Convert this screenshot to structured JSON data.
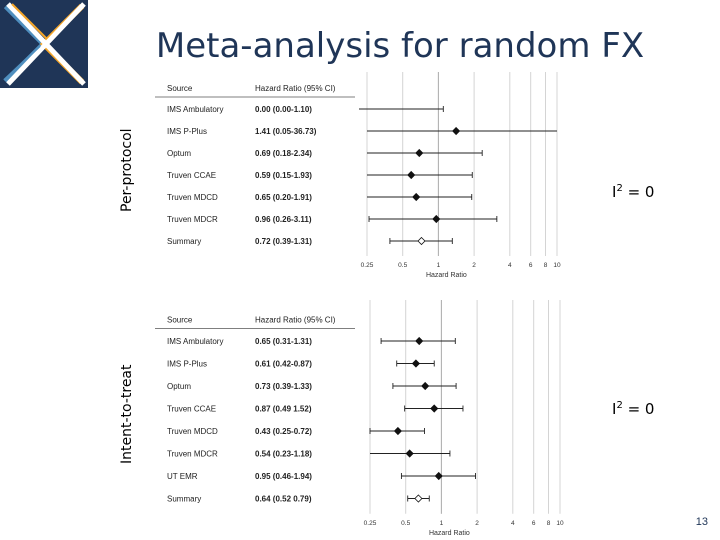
{
  "slide": {
    "title": "Meta-analysis for random FX",
    "page_number": "13",
    "colors": {
      "title": "#1f3557",
      "logo_navy": "#1f3557",
      "logo_orange": "#f4a62a",
      "logo_blue": "#4f8fbf"
    }
  },
  "chart_data": [
    {
      "type": "forest",
      "panel_label": "Per-protocol",
      "columns": [
        "Source",
        "Hazard Ratio (95% CI)"
      ],
      "rows": [
        {
          "source": "IMS Ambulatory",
          "text": "0.00 (0.00-1.10)",
          "hr": null,
          "lo": null,
          "hi": 1.1
        },
        {
          "source": "IMS P-Plus",
          "text": "1.41 (0.05-36.73)",
          "hr": 1.41,
          "lo": 0.05,
          "hi": 36.73
        },
        {
          "source": "Optum",
          "text": "0.69 (0.18-2.34)",
          "hr": 0.69,
          "lo": 0.18,
          "hi": 2.34
        },
        {
          "source": "Truven CCAE",
          "text": "0.59 (0.15-1.93)",
          "hr": 0.59,
          "lo": 0.15,
          "hi": 1.93
        },
        {
          "source": "Truven MDCD",
          "text": "0.65 (0.20-1.91)",
          "hr": 0.65,
          "lo": 0.2,
          "hi": 1.91
        },
        {
          "source": "Truven MDCR",
          "text": "0.96 (0.26-3.11)",
          "hr": 0.96,
          "lo": 0.26,
          "hi": 3.11
        },
        {
          "source": "Summary",
          "text": "0.72 (0.39-1.31)",
          "hr": 0.72,
          "lo": 0.39,
          "hi": 1.31,
          "summary": true
        }
      ],
      "xscale": "log",
      "xticks": [
        0.25,
        0.5,
        1,
        2,
        4,
        6,
        8,
        10
      ],
      "xtick_labels": [
        "0.25",
        "0.5",
        "1",
        "2",
        "4",
        "6",
        "8",
        "10"
      ],
      "xlabel": "Hazard Ratio",
      "annotation": {
        "prefix": "I",
        "sup": "2",
        "suffix": " = 0"
      }
    },
    {
      "type": "forest",
      "panel_label": "Intent-to-treat",
      "columns": [
        "Source",
        "Hazard Ratio (95% CI)"
      ],
      "rows": [
        {
          "source": "IMS Ambulatory",
          "text": "0.65 (0.31-1.31)",
          "hr": 0.65,
          "lo": 0.31,
          "hi": 1.31
        },
        {
          "source": "IMS P-Plus",
          "text": "0.61 (0.42-0.87)",
          "hr": 0.61,
          "lo": 0.42,
          "hi": 0.87
        },
        {
          "source": "Optum",
          "text": "0.73 (0.39-1.33)",
          "hr": 0.73,
          "lo": 0.39,
          "hi": 1.33
        },
        {
          "source": "Truven CCAE",
          "text": "0.87 (0.49 1.52)",
          "hr": 0.87,
          "lo": 0.49,
          "hi": 1.52
        },
        {
          "source": "Truven MDCD",
          "text": "0.43 (0.25-0.72)",
          "hr": 0.43,
          "lo": 0.25,
          "hi": 0.72
        },
        {
          "source": "Truven MDCR",
          "text": "0.54 (0.23-1.18)",
          "hr": 0.54,
          "lo": 0.23,
          "hi": 1.18
        },
        {
          "source": "UT EMR",
          "text": "0.95 (0.46-1.94)",
          "hr": 0.95,
          "lo": 0.46,
          "hi": 1.94
        },
        {
          "source": "Summary",
          "text": "0.64 (0.52 0.79)",
          "hr": 0.64,
          "lo": 0.52,
          "hi": 0.79,
          "summary": true
        }
      ],
      "xscale": "log",
      "xticks": [
        0.25,
        0.5,
        1,
        2,
        4,
        6,
        8,
        10
      ],
      "xtick_labels": [
        "0.25",
        "0.5",
        "1",
        "2",
        "4",
        "6",
        "8",
        "10"
      ],
      "xlabel": "Hazard Ratio",
      "annotation": {
        "prefix": "I",
        "sup": "2",
        "suffix": " = 0"
      }
    }
  ]
}
